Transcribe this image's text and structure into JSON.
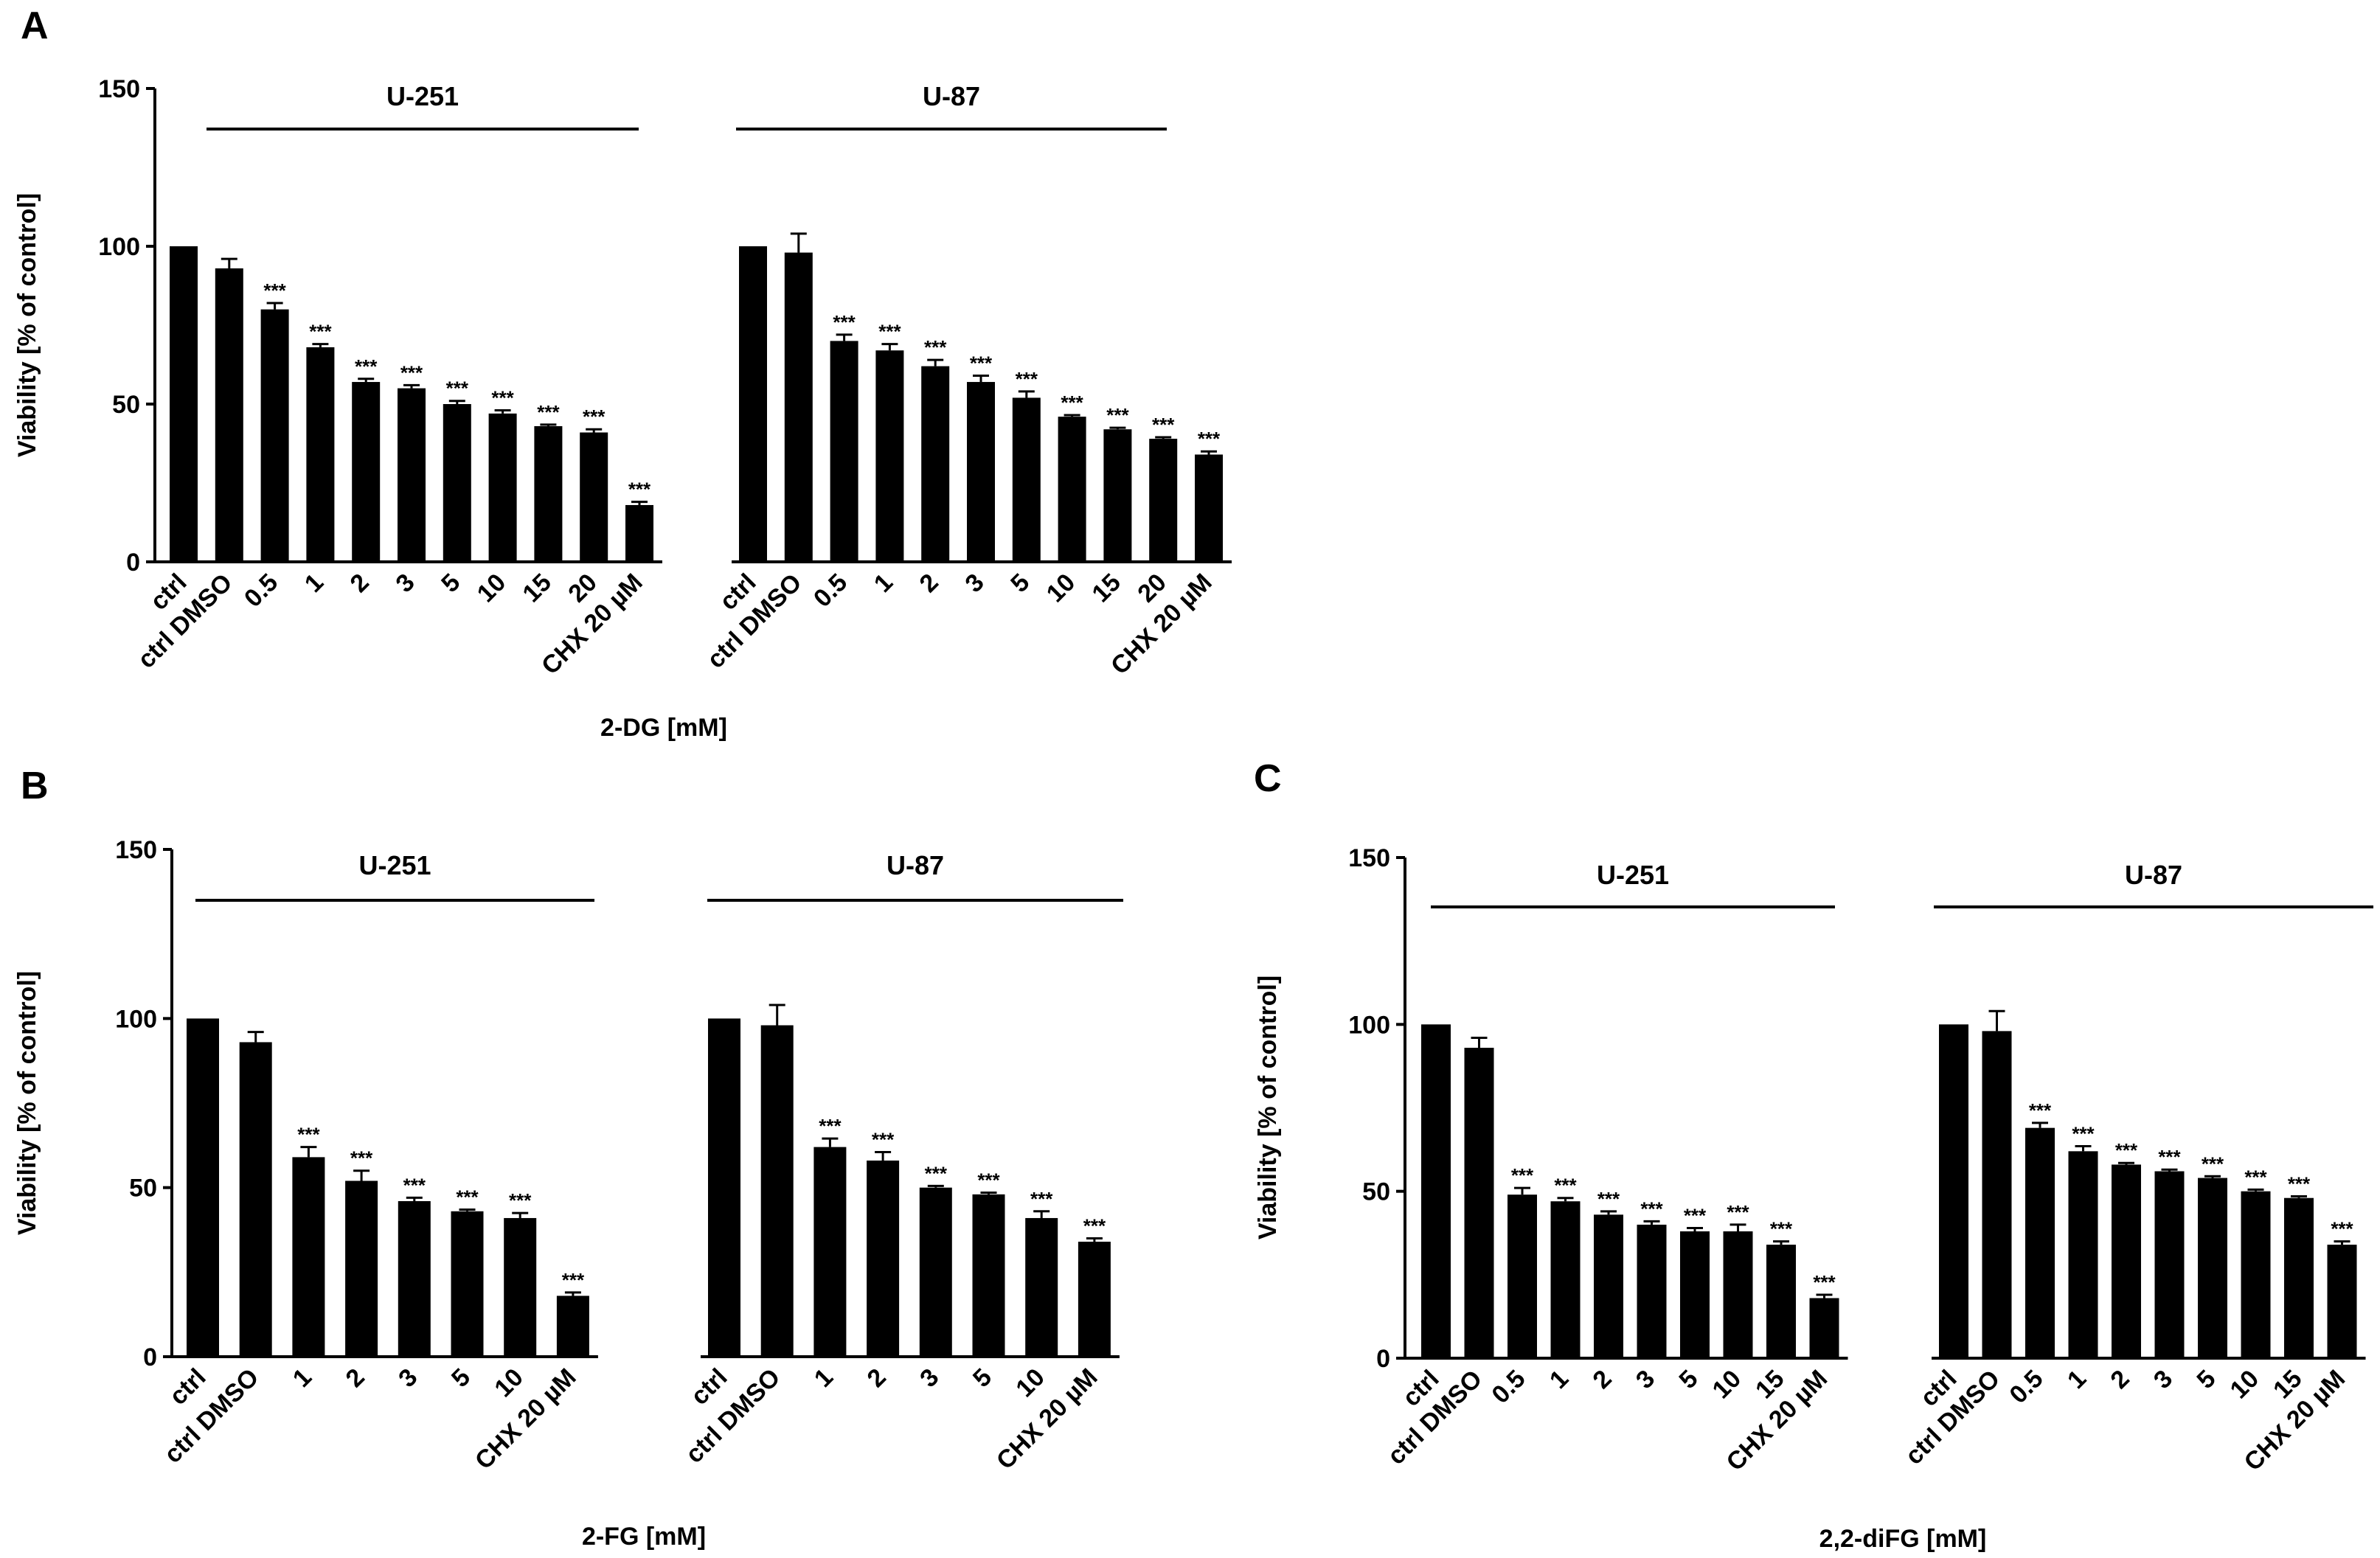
{
  "chart_data": [
    {
      "panel": "A",
      "type": "bar",
      "title": "",
      "xlabel": "2-DG [mM]",
      "ylabel": "Viability [% of control]",
      "ylim": [
        0,
        150
      ],
      "yticks": [
        0,
        50,
        100,
        150
      ],
      "groups": [
        {
          "name": "U-251",
          "categories": [
            "ctrl",
            "ctrl DMSO",
            "0.5",
            "1",
            "2",
            "3",
            "5",
            "10",
            "15",
            "20",
            "CHX 20 µM"
          ],
          "values": [
            100,
            93,
            80,
            68,
            57,
            55,
            50,
            47,
            43,
            41,
            18
          ],
          "errors": [
            0,
            3,
            2,
            1,
            1,
            1,
            1,
            1,
            0.5,
            1,
            1
          ],
          "significance": [
            "",
            "",
            "***",
            "***",
            "***",
            "***",
            "***",
            "***",
            "***",
            "***",
            "***"
          ]
        },
        {
          "name": "U-87",
          "categories": [
            "ctrl",
            "ctrl DMSO",
            "0.5",
            "1",
            "2",
            "3",
            "5",
            "10",
            "15",
            "20",
            "CHX 20 µM"
          ],
          "values": [
            100,
            98,
            70,
            67,
            62,
            57,
            52,
            46,
            42,
            39,
            34
          ],
          "errors": [
            0,
            6,
            2,
            2,
            2,
            2,
            2,
            0.5,
            0.5,
            0.5,
            1
          ],
          "significance": [
            "",
            "",
            "***",
            "***",
            "***",
            "***",
            "***",
            "***",
            "***",
            "***",
            "***"
          ]
        }
      ]
    },
    {
      "panel": "B",
      "type": "bar",
      "title": "",
      "xlabel": "2-FG [mM]",
      "ylabel": "Viability [% of control]",
      "ylim": [
        0,
        150
      ],
      "yticks": [
        0,
        50,
        100,
        150
      ],
      "groups": [
        {
          "name": "U-251",
          "categories": [
            "ctrl",
            "ctrl DMSO",
            "1",
            "2",
            "3",
            "5",
            "10",
            "CHX 20 µM"
          ],
          "values": [
            100,
            93,
            59,
            52,
            46,
            43,
            41,
            18
          ],
          "errors": [
            0,
            3,
            3,
            3,
            1,
            0.5,
            1.5,
            1
          ],
          "significance": [
            "",
            "",
            "***",
            "***",
            "***",
            "***",
            "***",
            "***"
          ]
        },
        {
          "name": "U-87",
          "categories": [
            "ctrl",
            "ctrl DMSO",
            "1",
            "2",
            "3",
            "5",
            "10",
            "CHX 20 µM"
          ],
          "values": [
            100,
            98,
            62,
            58,
            50,
            48,
            41,
            34
          ],
          "errors": [
            0,
            6,
            2.5,
            2.5,
            0.5,
            0.5,
            2,
            1
          ],
          "significance": [
            "",
            "",
            "***",
            "***",
            "***",
            "***",
            "***",
            "***"
          ]
        }
      ]
    },
    {
      "panel": "C",
      "type": "bar",
      "title": "",
      "xlabel": "2,2-diFG [mM]",
      "ylabel": "Viability [% of control]",
      "ylim": [
        0,
        150
      ],
      "yticks": [
        0,
        50,
        100,
        150
      ],
      "groups": [
        {
          "name": "U-251",
          "categories": [
            "ctrl",
            "ctrl DMSO",
            "0.5",
            "1",
            "2",
            "3",
            "5",
            "10",
            "15",
            "CHX 20 µM"
          ],
          "values": [
            100,
            93,
            49,
            47,
            43,
            40,
            38,
            38,
            34,
            18
          ],
          "errors": [
            0,
            3,
            2,
            1,
            1,
            1,
            1,
            2,
            1,
            1
          ],
          "significance": [
            "",
            "",
            "***",
            "***",
            "***",
            "***",
            "***",
            "***",
            "***",
            "***"
          ]
        },
        {
          "name": "U-87",
          "categories": [
            "ctrl",
            "ctrl DMSO",
            "0.5",
            "1",
            "2",
            "3",
            "5",
            "10",
            "15",
            "CHX 20 µM"
          ],
          "values": [
            100,
            98,
            69,
            62,
            58,
            56,
            54,
            50,
            48,
            34
          ],
          "errors": [
            0,
            6,
            1.5,
            1.5,
            0.5,
            0.5,
            0.5,
            0.5,
            0.5,
            1
          ],
          "significance": [
            "",
            "",
            "***",
            "***",
            "***",
            "***",
            "***",
            "***",
            "***",
            "***"
          ]
        }
      ]
    }
  ]
}
